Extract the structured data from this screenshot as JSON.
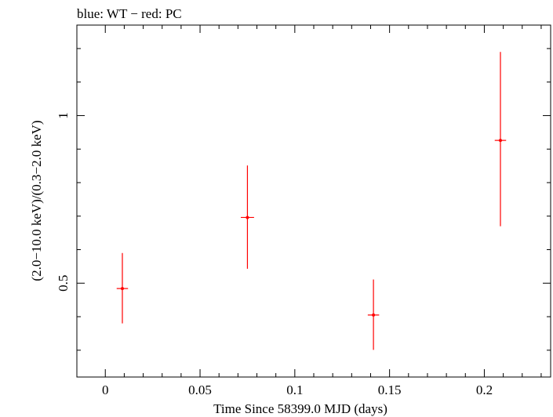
{
  "chart_data": {
    "type": "scatter",
    "title": "blue: WT − red: PC",
    "xlabel": "Time Since 58399.0 MJD (days)",
    "ylabel": "(2.0−10.0 keV)/(0.3−2.0 keV)",
    "xlim": [
      -0.015,
      0.235
    ],
    "ylim": [
      0.22,
      1.27
    ],
    "x_major_ticks": [
      0,
      0.05,
      0.1,
      0.15,
      0.2
    ],
    "x_tick_labels": [
      "0",
      "0.05",
      "0.1",
      "0.15",
      "0.2"
    ],
    "x_minor_ticks": [
      0.01,
      0.02,
      0.03,
      0.04,
      0.06,
      0.07,
      0.08,
      0.09,
      0.11,
      0.12,
      0.13,
      0.14,
      0.16,
      0.17,
      0.18,
      0.19,
      0.21,
      0.22,
      0.23
    ],
    "y_major_ticks": [
      0.5,
      1
    ],
    "y_tick_labels": [
      "0.5",
      "1"
    ],
    "y_minor_ticks": [
      0.3,
      0.4,
      0.6,
      0.7,
      0.8,
      0.9,
      1.1,
      1.2
    ],
    "series": [
      {
        "color": "#ff0000",
        "points": [
          {
            "x": 0.009,
            "xerr": 0.003,
            "y": 0.484,
            "ylo": 0.38,
            "yhi": 0.59
          },
          {
            "x": 0.075,
            "xerr": 0.0035,
            "y": 0.696,
            "ylo": 0.543,
            "yhi": 0.851
          },
          {
            "x": 0.1415,
            "xerr": 0.003,
            "y": 0.405,
            "ylo": 0.301,
            "yhi": 0.511
          },
          {
            "x": 0.2085,
            "xerr": 0.003,
            "y": 0.926,
            "ylo": 0.67,
            "yhi": 1.19
          }
        ]
      }
    ],
    "grid": false,
    "legend": "none"
  }
}
